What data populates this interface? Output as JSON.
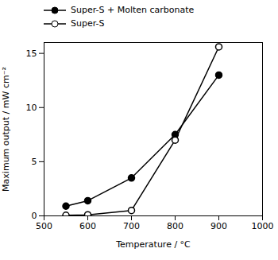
{
  "chart_data": {
    "type": "line",
    "xlabel": "Temperature / °C",
    "ylabel": "Maximum output / mW cm⁻²",
    "series": [
      {
        "name": "Super-S + Molten carbonate",
        "color": "black",
        "marker": "filled_circle",
        "x": [
          550,
          600,
          700,
          800,
          900
        ],
        "values": [
          0.9,
          1.4,
          3.5,
          7.5,
          13.0
        ]
      },
      {
        "name": "Super-S",
        "color": "black",
        "marker": "open_circle",
        "x": [
          550,
          600,
          700,
          800,
          900
        ],
        "values": [
          0.05,
          0.1,
          0.5,
          7.0,
          15.6
        ]
      }
    ],
    "xlim": [
      500,
      1000
    ],
    "ylim": [
      0,
      16
    ],
    "xticks": [
      500,
      600,
      700,
      800,
      900,
      1000
    ],
    "yticks": [
      0,
      5,
      10,
      15
    ],
    "grid": false,
    "legend": "top"
  }
}
